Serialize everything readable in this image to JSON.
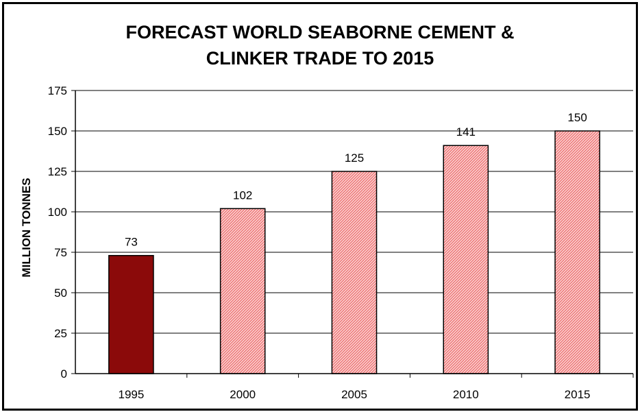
{
  "chart_data": {
    "type": "bar",
    "title_lines": [
      "FORECAST WORLD SEABORNE CEMENT &",
      "CLINKER TRADE TO 2015"
    ],
    "ylabel": "MILLION TONNES",
    "xlabel": "",
    "categories": [
      "1995",
      "2000",
      "2005",
      "2010",
      "2015"
    ],
    "values": [
      73,
      102,
      125,
      141,
      150
    ],
    "data_labels": [
      "73",
      "102",
      "125",
      "141",
      "150"
    ],
    "ylim": [
      0,
      175
    ],
    "yticks": [
      0,
      25,
      50,
      75,
      100,
      125,
      150,
      175
    ],
    "grid": true,
    "legend": "none",
    "colors": {
      "highlight_bar": "#8b0a0a",
      "bar": "#f08080",
      "bar_hatch": "#ffffff",
      "axis": "#000000",
      "grid": "#000000"
    },
    "highlight_index": 0
  }
}
